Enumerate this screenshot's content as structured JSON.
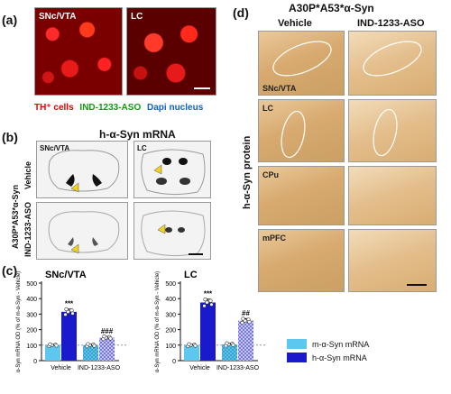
{
  "panel_a": {
    "letter": "(a)",
    "tile1_label": "SNc/VTA",
    "tile2_label": "LC",
    "legend": {
      "th": "TH⁺ cells",
      "ind": "IND-1233-ASO",
      "dapi": "Dapi nucleus"
    },
    "colors": {
      "th": "#e00000",
      "ind": "#129a12",
      "dapi": "#1060c8"
    }
  },
  "panel_b": {
    "letter": "(b)",
    "title": "h-α-Syn mRNA",
    "col1": "SNc/VTA",
    "col2": "LC",
    "row_group": "A30P*A53*α-Syn",
    "row1": "Vehicle",
    "row2": "IND-1233-ASO"
  },
  "panel_c": {
    "letter": "(c)",
    "chart_data": [
      {
        "type": "bar",
        "title": "SNc/VTA",
        "ylabel": "α-Syn mRNA OD (% of m-α-Syn - Vehicle)",
        "ylim": [
          0,
          500
        ],
        "yticks": [
          "0",
          "100",
          "200",
          "300",
          "400",
          "500"
        ],
        "categories": [
          "Vehicle",
          "IND-1233-ASO"
        ],
        "series": [
          {
            "name": "m-α-Syn mRNA",
            "values": [
              100,
              100
            ]
          },
          {
            "name": "h-α-Syn mRNA",
            "values": [
              315,
              148
            ]
          }
        ],
        "errors": [
          [
            6,
            8
          ],
          [
            18,
            9
          ]
        ],
        "annotations": [
          "***",
          "###"
        ],
        "reference_line": 100
      },
      {
        "type": "bar",
        "title": "LC",
        "ylabel": "α-Syn mRNA OD (% of m-α-Syn - Vehicle)",
        "ylim": [
          0,
          500
        ],
        "yticks": [
          "0",
          "100",
          "200",
          "300",
          "400",
          "500"
        ],
        "categories": [
          "Vehicle",
          "IND-1233-ASO"
        ],
        "series": [
          {
            "name": "m-α-Syn mRNA",
            "values": [
              100,
              105
            ]
          },
          {
            "name": "h-α-Syn mRNA",
            "values": [
              375,
              258
            ]
          }
        ],
        "errors": [
          [
            7,
            8
          ],
          [
            22,
            14
          ]
        ],
        "annotations": [
          "***",
          "##"
        ],
        "reference_line": 100
      }
    ],
    "legend": {
      "m": "m-α-Syn mRNA",
      "h": "h-α-Syn mRNA"
    },
    "colors": {
      "m": "#5cc8f0",
      "h": "#1a1acc",
      "h_hatch": "#6a6af0"
    }
  },
  "panel_d": {
    "letter": "(d)",
    "title": "A30P*A53*α-Syn",
    "col1": "Vehicle",
    "col2": "IND-1233-ASO",
    "side_label": "h-α-Syn protein",
    "regions": [
      "SNc/VTA",
      "LC",
      "CPu",
      "mPFC"
    ]
  }
}
